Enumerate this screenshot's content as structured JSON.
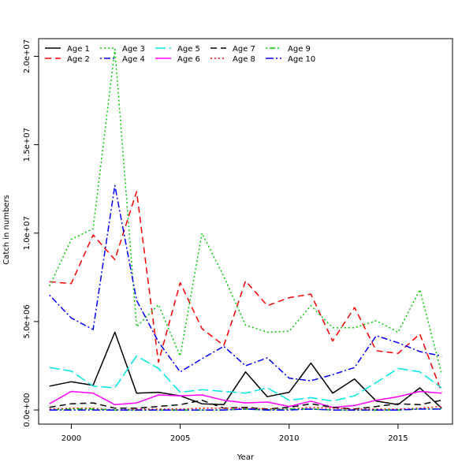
{
  "chart_data": {
    "type": "line",
    "title": "",
    "xlabel": "Year",
    "ylabel": "Catch in numbers",
    "xlim": [
      1998.5,
      2017.5
    ],
    "ylim": [
      -800000,
      21000000
    ],
    "x_ticks": [
      2000,
      2005,
      2010,
      2015
    ],
    "y_ticks": [
      0,
      5000000,
      10000000,
      15000000,
      20000000
    ],
    "y_tick_labels": [
      "0.0e+00",
      "5.0e+06",
      "1.0e+07",
      "1.5e+07",
      "2.0e+07"
    ],
    "legend_position": "top-left",
    "x": [
      1999,
      2000,
      2001,
      2002,
      2003,
      2004,
      2005,
      2006,
      2007,
      2008,
      2009,
      2010,
      2011,
      2012,
      2013,
      2014,
      2015,
      2016,
      2017
    ],
    "series": [
      {
        "name": "Age 1",
        "color": "#000000",
        "dash": "solid",
        "width": 1.5,
        "values": [
          1350000,
          1600000,
          1400000,
          4400000,
          950000,
          1000000,
          800000,
          350000,
          300000,
          2150000,
          750000,
          1000000,
          2650000,
          950000,
          1750000,
          500000,
          300000,
          1250000,
          100000
        ]
      },
      {
        "name": "Age 2",
        "color": "#ff0000",
        "dash": "dash",
        "width": 1.5,
        "values": [
          7250000,
          7150000,
          9900000,
          8500000,
          12350000,
          2700000,
          7200000,
          4600000,
          3650000,
          7300000,
          5900000,
          6350000,
          6550000,
          3900000,
          5800000,
          3350000,
          3200000,
          4300000,
          1000000
        ]
      },
      {
        "name": "Age 3",
        "color": "#00cc00",
        "dash": "dot",
        "width": 1.5,
        "values": [
          7000000,
          9650000,
          10250000,
          20400000,
          4700000,
          5950000,
          3050000,
          10000000,
          7550000,
          4800000,
          4400000,
          4450000,
          5900000,
          4650000,
          4650000,
          5050000,
          4400000,
          6800000,
          2050000
        ]
      },
      {
        "name": "Age 4",
        "color": "#0000ff",
        "dash": "dashdot",
        "width": 1.5,
        "values": [
          6500000,
          5200000,
          4550000,
          12700000,
          6200000,
          3850000,
          2150000,
          2900000,
          3600000,
          2500000,
          2950000,
          1800000,
          1650000,
          2000000,
          2400000,
          4200000,
          3800000,
          3300000,
          3050000
        ]
      },
      {
        "name": "Age 5",
        "color": "#00e5e5",
        "dash": "longdash",
        "width": 1.5,
        "values": [
          2400000,
          2200000,
          1350000,
          1250000,
          3050000,
          2350000,
          1000000,
          1150000,
          1050000,
          950000,
          1250000,
          550000,
          700000,
          500000,
          800000,
          1550000,
          2350000,
          2150000,
          1250000
        ]
      },
      {
        "name": "Age 6",
        "color": "#ff00ff",
        "dash": "solid",
        "width": 1.5,
        "values": [
          350000,
          1050000,
          950000,
          300000,
          400000,
          850000,
          800000,
          850000,
          550000,
          400000,
          450000,
          200000,
          500000,
          150000,
          250000,
          550000,
          750000,
          1050000,
          950000
        ]
      },
      {
        "name": "Age 7",
        "color": "#000000",
        "dash": "dash",
        "width": 1.5,
        "values": [
          150000,
          350000,
          400000,
          100000,
          100000,
          200000,
          300000,
          550000,
          100000,
          150000,
          50000,
          150000,
          350000,
          150000,
          50000,
          200000,
          350000,
          300000,
          550000
        ]
      },
      {
        "name": "Age 8",
        "color": "#ff0000",
        "dash": "dot",
        "width": 1.5,
        "values": [
          50000,
          100000,
          100000,
          0,
          50000,
          50000,
          50000,
          100000,
          100000,
          100000,
          50000,
          50000,
          150000,
          100000,
          50000,
          50000,
          50000,
          100000,
          200000
        ]
      },
      {
        "name": "Age 9",
        "color": "#00cc00",
        "dash": "dotdash",
        "width": 1.5,
        "values": [
          0,
          50000,
          50000,
          0,
          0,
          0,
          0,
          0,
          0,
          50000,
          0,
          50000,
          50000,
          0,
          0,
          0,
          0,
          50000,
          50000
        ]
      },
      {
        "name": "Age 10",
        "color": "#0000ff",
        "dash": "longdash2",
        "width": 1.5,
        "values": [
          0,
          0,
          0,
          0,
          0,
          0,
          0,
          0,
          0,
          50000,
          0,
          0,
          50000,
          0,
          0,
          0,
          0,
          50000,
          50000
        ]
      }
    ]
  }
}
